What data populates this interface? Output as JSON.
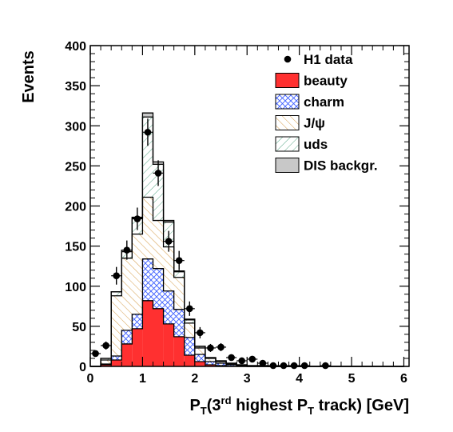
{
  "chart_data": {
    "type": "bar",
    "stacked": true,
    "xlabel_main": "P",
    "xlabel_sub1": "T",
    "xlabel_mid1": "(3",
    "xlabel_sup": "rd",
    "xlabel_mid2": " highest P",
    "xlabel_sub2": "T",
    "xlabel_end": " track) [GeV]",
    "ylabel": "Events",
    "xlim": [
      0,
      6.1
    ],
    "ylim": [
      0,
      400
    ],
    "x_ticks": [
      0,
      1,
      2,
      3,
      4,
      5,
      6
    ],
    "y_ticks": [
      0,
      50,
      100,
      150,
      200,
      250,
      300,
      350,
      400
    ],
    "bin_edges": [
      0.0,
      0.2,
      0.4,
      0.6,
      0.8,
      1.0,
      1.2,
      1.4,
      1.6,
      1.8,
      2.0,
      2.2,
      2.4,
      2.6,
      2.8,
      3.0,
      3.2,
      3.4,
      3.6,
      3.8,
      4.0,
      4.2,
      4.4,
      4.6,
      4.8,
      5.0,
      5.2,
      5.4,
      5.6,
      5.8,
      6.0
    ],
    "series": [
      {
        "name": "beauty",
        "fill": "#ff3030",
        "pattern": "solid",
        "values": [
          0,
          2,
          8,
          28,
          47,
          82,
          72,
          53,
          37,
          14,
          6,
          2,
          1,
          0,
          0,
          0,
          0,
          0,
          0,
          0,
          0,
          0,
          0,
          0,
          0,
          0,
          0,
          0,
          0,
          0
        ]
      },
      {
        "name": "charm",
        "fill": "#4a6cff",
        "pattern": "crosshatch",
        "values": [
          0,
          1,
          5,
          17,
          18,
          52,
          50,
          41,
          34,
          22,
          9,
          4,
          3,
          2,
          1,
          0,
          0,
          0,
          0,
          0,
          0,
          0,
          0,
          0,
          0,
          0,
          0,
          0,
          0,
          0
        ]
      },
      {
        "name": "J/ψ",
        "fill": "#d9a050",
        "pattern": "diag-left",
        "values": [
          0,
          5,
          75,
          90,
          100,
          77,
          60,
          55,
          40,
          18,
          8,
          4,
          2,
          1,
          0,
          0,
          0,
          0,
          0,
          0,
          0,
          0,
          0,
          0,
          0,
          0,
          0,
          0,
          0,
          0
        ]
      },
      {
        "name": "uds",
        "fill": "#60b090",
        "pattern": "diag-right",
        "values": [
          0,
          2,
          5,
          8,
          20,
          100,
          70,
          31,
          7,
          4,
          2,
          1,
          1,
          1,
          1,
          1,
          1,
          0,
          0,
          0,
          0,
          0,
          0,
          0,
          0,
          0,
          0,
          0,
          0,
          0
        ]
      },
      {
        "name": "DIS backgr.",
        "fill": "#c8c8c8",
        "pattern": "solid",
        "values": [
          0,
          0,
          0,
          2,
          1,
          5,
          3,
          2,
          1,
          1,
          0,
          0,
          0,
          0,
          0,
          0,
          0,
          0,
          0,
          0,
          0,
          0,
          0,
          0,
          0,
          0,
          0,
          0,
          0,
          0
        ]
      }
    ],
    "data_points": {
      "name": "H1 data",
      "x": [
        0.1,
        0.3,
        0.5,
        0.7,
        0.9,
        1.1,
        1.3,
        1.5,
        1.7,
        1.9,
        2.1,
        2.3,
        2.5,
        2.7,
        2.9,
        3.1,
        3.3,
        3.5,
        3.7,
        3.9,
        4.1,
        4.5
      ],
      "y": [
        16,
        26,
        113,
        145,
        184,
        292,
        241,
        156,
        132,
        72,
        42,
        23,
        24,
        11,
        7,
        9,
        4,
        1,
        1,
        1,
        1,
        1
      ],
      "err": [
        4,
        5,
        11,
        12,
        14,
        17,
        16,
        13,
        12,
        9,
        7,
        5,
        5,
        3,
        3,
        3,
        2,
        1,
        1,
        1,
        1,
        1
      ]
    },
    "legend_position": "top-right",
    "grid": false
  }
}
